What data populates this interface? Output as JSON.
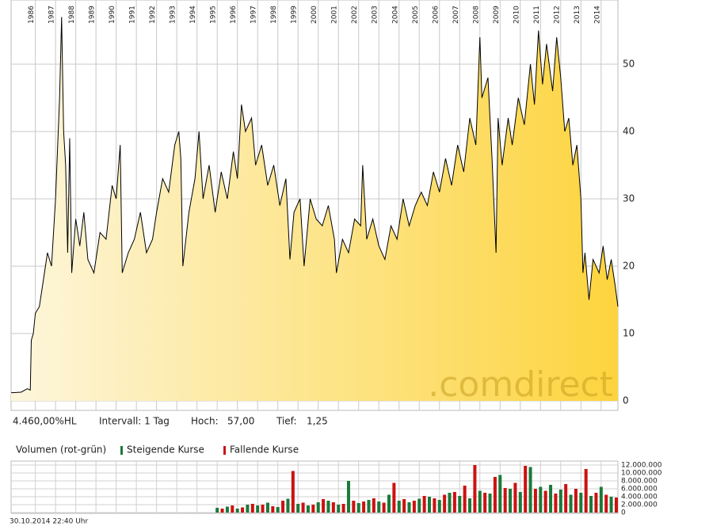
{
  "chart_data": [
    {
      "type": "line",
      "watermark": ".comdirect",
      "xlim": [
        1984.8,
        2014.83
      ],
      "xticks": [
        1986,
        1987,
        1988,
        1989,
        1990,
        1991,
        1992,
        1993,
        1994,
        1995,
        1996,
        1997,
        1998,
        1999,
        2000,
        2001,
        2002,
        2003,
        2004,
        2005,
        2006,
        2007,
        2008,
        2009,
        2010,
        2011,
        2012,
        2013,
        2014
      ],
      "ylim": [
        0,
        58
      ],
      "yticks": [
        0,
        10,
        20,
        30,
        40,
        50
      ],
      "grid": true,
      "series": [
        {
          "color": "#000000",
          "x": [
            1984.8,
            1985.3,
            1985.6,
            1985.75,
            1985.8,
            1985.9,
            1986.0,
            1986.2,
            1986.4,
            1986.6,
            1986.8,
            1987.0,
            1987.2,
            1987.3,
            1987.4,
            1987.5,
            1987.6,
            1987.7,
            1987.8,
            1988.0,
            1988.2,
            1988.4,
            1988.6,
            1988.9,
            1989.2,
            1989.5,
            1989.8,
            1990.0,
            1990.2,
            1990.3,
            1990.6,
            1990.9,
            1991.2,
            1991.5,
            1991.8,
            1992.0,
            1992.3,
            1992.6,
            1992.9,
            1993.1,
            1993.2,
            1993.3,
            1993.6,
            1993.9,
            1994.1,
            1994.3,
            1994.6,
            1994.9,
            1995.2,
            1995.5,
            1995.8,
            1996.0,
            1996.2,
            1996.4,
            1996.7,
            1996.9,
            1997.2,
            1997.5,
            1997.8,
            1998.1,
            1998.4,
            1998.6,
            1998.8,
            1999.1,
            1999.3,
            1999.6,
            1999.9,
            2000.2,
            2000.5,
            2000.8,
            2000.9,
            2001.2,
            2001.5,
            2001.8,
            2002.1,
            2002.2,
            2002.4,
            2002.7,
            2003.0,
            2003.3,
            2003.6,
            2003.9,
            2004.2,
            2004.5,
            2004.8,
            2005.1,
            2005.4,
            2005.7,
            2006.0,
            2006.3,
            2006.6,
            2006.9,
            2007.2,
            2007.5,
            2007.8,
            2008.0,
            2008.1,
            2008.4,
            2008.6,
            2008.8,
            2008.9,
            2009.1,
            2009.4,
            2009.6,
            2009.9,
            2010.2,
            2010.5,
            2010.7,
            2010.9,
            2011.1,
            2011.3,
            2011.6,
            2011.8,
            2012.0,
            2012.2,
            2012.4,
            2012.6,
            2012.8,
            2013.0,
            2013.1,
            2013.2,
            2013.4,
            2013.6,
            2013.9,
            2014.1,
            2014.3,
            2014.5,
            2014.7,
            2014.83
          ],
          "values": [
            1.2,
            1.3,
            1.8,
            1.6,
            9,
            10,
            13,
            14,
            18,
            22,
            20,
            30,
            45,
            57,
            40,
            35,
            22,
            39,
            19,
            27,
            23,
            28,
            21,
            19,
            25,
            24,
            32,
            30,
            38,
            19,
            22,
            24,
            28,
            22,
            24,
            28,
            33,
            31,
            38,
            40,
            36,
            20,
            28,
            33,
            40,
            30,
            35,
            28,
            34,
            30,
            37,
            33,
            44,
            40,
            42,
            35,
            38,
            32,
            35,
            29,
            33,
            21,
            28,
            30,
            20,
            30,
            27,
            26,
            29,
            24,
            19,
            24,
            22,
            27,
            26,
            35,
            24,
            27,
            23,
            21,
            26,
            24,
            30,
            26,
            29,
            31,
            29,
            34,
            31,
            36,
            32,
            38,
            34,
            42,
            38,
            54,
            45,
            48,
            36,
            22,
            42,
            35,
            42,
            38,
            45,
            41,
            50,
            44,
            55,
            47,
            53,
            46,
            54,
            48,
            40,
            42,
            35,
            38,
            30,
            19,
            22,
            15,
            21,
            19,
            23,
            18,
            21,
            17,
            14
          ]
        }
      ],
      "info": {
        "change": "4.460,00%HL",
        "interval": "Intervall: 1 Tag",
        "high_label": "Hoch:",
        "high": "57,00",
        "low_label": "Tief:",
        "low": "1,25"
      },
      "footer": "30.10.2014 22:40 Uhr"
    },
    {
      "type": "bar",
      "title": "Volumen (rot-grün)",
      "xlim": [
        1984.8,
        2014.83
      ],
      "ylim": [
        0,
        12600000
      ],
      "yticks": [
        {
          "value": 0,
          "label": "0"
        },
        {
          "value": 2000000,
          "label": "2.000.000"
        },
        {
          "value": 4000000,
          "label": "4.000.000"
        },
        {
          "value": 6000000,
          "label": "6.000.000"
        },
        {
          "value": 8000000,
          "label": "8.000.000"
        },
        {
          "value": 10000000,
          "label": "10.000.000"
        },
        {
          "value": 12000000,
          "label": "12.000.000"
        }
      ],
      "series": [
        {
          "name": "Steigende Kurse",
          "color": "#1a7a3a",
          "x": [
            1995.0,
            1995.5,
            1996.0,
            1996.5,
            1997.0,
            1997.5,
            1998.0,
            1998.5,
            1999.0,
            1999.5,
            2000.0,
            2000.5,
            2001.0,
            2001.5,
            2002.0,
            2002.5,
            2003.0,
            2003.5,
            2004.0,
            2004.5,
            2005.0,
            2005.5,
            2006.0,
            2006.5,
            2007.0,
            2007.5,
            2008.0,
            2008.5,
            2009.0,
            2009.5,
            2010.0,
            2010.5,
            2011.0,
            2011.5,
            2012.0,
            2012.5,
            2013.0,
            2013.5,
            2014.0,
            2014.5
          ],
          "values": [
            1200000,
            1500000,
            1000000,
            2000000,
            1800000,
            2500000,
            1400000,
            3500000,
            2200000,
            1800000,
            2600000,
            3000000,
            2000000,
            8000000,
            2400000,
            3200000,
            2800000,
            4500000,
            3000000,
            2600000,
            3500000,
            4000000,
            3200000,
            5000000,
            4200000,
            3600000,
            5500000,
            4800000,
            9500000,
            6000000,
            5200000,
            11500000,
            6500000,
            7000000,
            5800000,
            4500000,
            5000000,
            4200000,
            6500000,
            4000000
          ]
        },
        {
          "name": "Fallende Kurse",
          "color": "#cc1111",
          "x": [
            1995.25,
            1995.75,
            1996.25,
            1996.75,
            1997.25,
            1997.75,
            1998.25,
            1998.75,
            1999.25,
            1999.75,
            2000.25,
            2000.75,
            2001.25,
            2001.75,
            2002.25,
            2002.75,
            2003.25,
            2003.75,
            2004.25,
            2004.75,
            2005.25,
            2005.75,
            2006.25,
            2006.75,
            2007.25,
            2007.75,
            2008.25,
            2008.75,
            2009.25,
            2009.75,
            2010.25,
            2010.75,
            2011.25,
            2011.75,
            2012.25,
            2012.75,
            2013.25,
            2013.75,
            2014.25,
            2014.75
          ],
          "values": [
            1000000,
            1800000,
            1300000,
            2200000,
            2000000,
            1600000,
            3000000,
            10500000,
            2500000,
            2000000,
            3400000,
            2600000,
            2200000,
            3000000,
            2800000,
            3600000,
            2500000,
            7500000,
            3400000,
            3000000,
            4200000,
            3600000,
            4500000,
            5200000,
            6800000,
            12000000,
            5000000,
            9000000,
            6200000,
            7500000,
            11800000,
            6000000,
            5500000,
            4800000,
            7200000,
            6000000,
            11000000,
            5000000,
            4500000,
            3800000
          ]
        }
      ]
    }
  ]
}
